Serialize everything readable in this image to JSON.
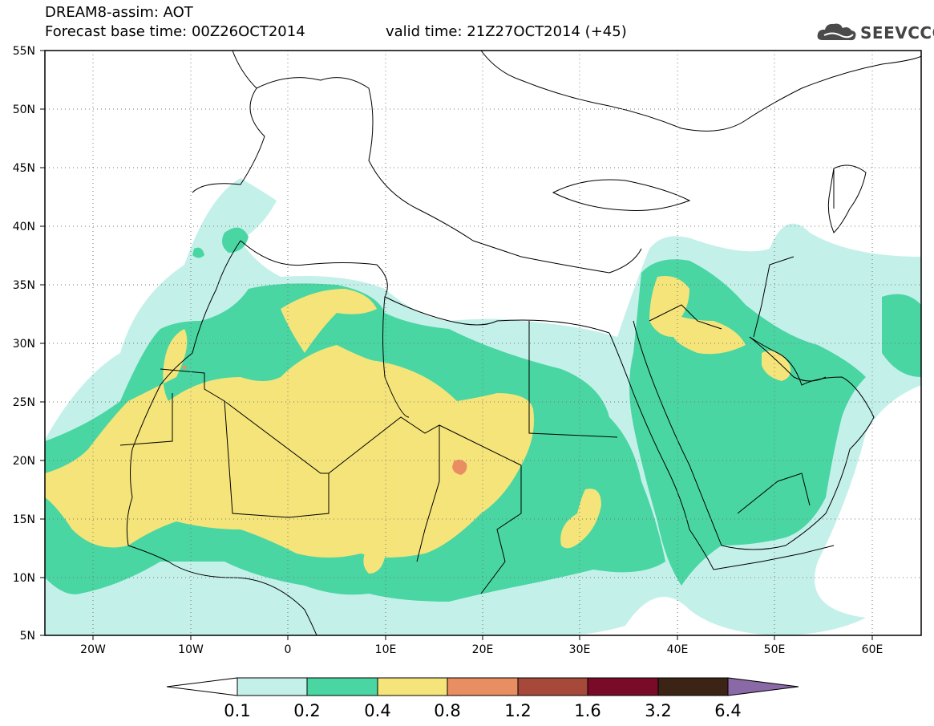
{
  "title": {
    "line1": "DREAM8-assim: AOT",
    "forecast_base": "Forecast base time: 00Z26OCT2014",
    "valid_time": "valid time: 21Z27OCT2014 (+45)"
  },
  "logo": {
    "text": "SEEVCCC",
    "icon": "cloud-icon"
  },
  "map": {
    "lat_labels": [
      "55N",
      "50N",
      "45N",
      "40N",
      "35N",
      "30N",
      "25N",
      "20N",
      "15N",
      "10N",
      "5N"
    ],
    "lon_labels": [
      "20W",
      "10W",
      "0",
      "10E",
      "20E",
      "30E",
      "40E",
      "50E",
      "60E"
    ],
    "lat_range": [
      5,
      55
    ],
    "lon_range": [
      -25,
      65
    ],
    "grid": "dotted"
  },
  "colorbar": {
    "labels": [
      "0.1",
      "0.2",
      "0.4",
      "0.8",
      "1.2",
      "1.6",
      "3.2",
      "6.4"
    ],
    "colors": [
      "#ffffff",
      "#c4f0ea",
      "#49d6a3",
      "#f5e47a",
      "#e98d62",
      "#a6483a",
      "#7a0b28",
      "#3b2415",
      "#8a6aa6"
    ]
  }
}
